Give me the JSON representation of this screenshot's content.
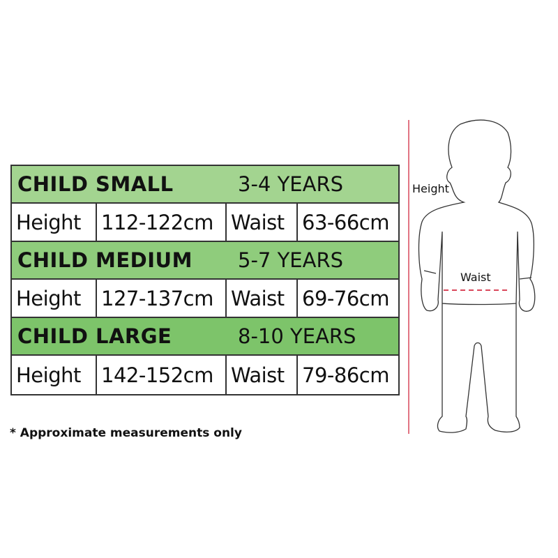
{
  "sizes": [
    {
      "name": "CHILD SMALL",
      "age": "3-4 YEARS",
      "color": "#a3d490",
      "height_label": "Height",
      "height": "112-122cm",
      "waist_label": "Waist",
      "waist": "63-66cm"
    },
    {
      "name": "CHILD MEDIUM",
      "age": "5-7 YEARS",
      "color": "#8fcc7c",
      "height_label": "Height",
      "height": "127-137cm",
      "waist_label": "Waist",
      "waist": "69-76cm"
    },
    {
      "name": "CHILD LARGE",
      "age": "8-10 YEARS",
      "color": "#7dc46a",
      "height_label": "Height",
      "height": "142-152cm",
      "waist_label": "Waist",
      "waist": "79-86cm"
    }
  ],
  "note": "* Approximate measurements only",
  "diagram": {
    "height_label": "Height",
    "waist_label": "Waist",
    "measure_color": "#d9475a"
  }
}
